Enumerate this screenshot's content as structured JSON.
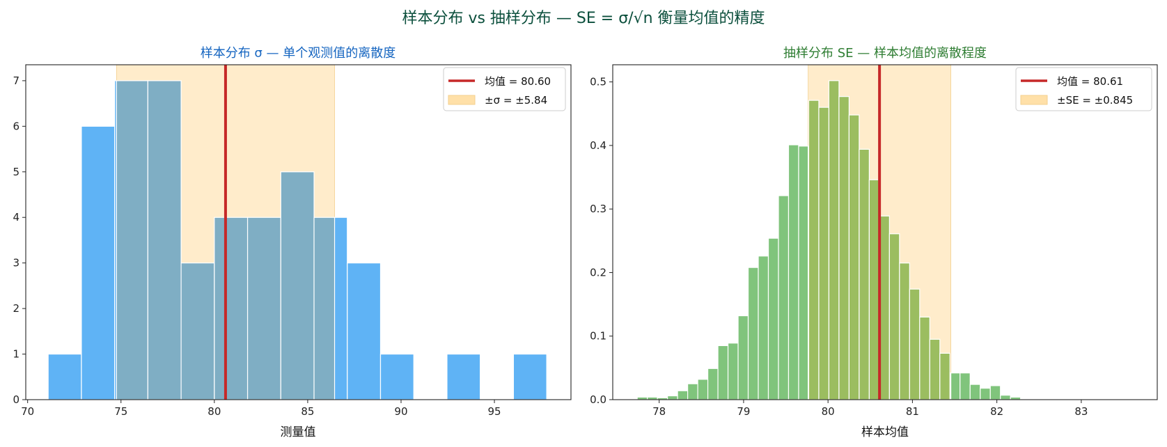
{
  "suptitle": "样本分布 vs 抽样分布 — SE = σ/√n 衡量均值的精度",
  "colors": {
    "mean_line": "#c62828",
    "band": "#ffe0a8",
    "left_bar": "#5fb3f5",
    "left_bar_in_band": "#7faec4",
    "right_bar": "#80c47c",
    "right_bar_in_band": "#9bbd60",
    "left_title": "#1565c0",
    "right_title": "#2e7d32"
  },
  "chart_data": [
    {
      "type": "bar",
      "title": "样本分布 σ — 单个观测值的离散度",
      "xlabel": "测量值",
      "ylabel": "",
      "xlim": [
        69.9,
        99.1
      ],
      "ylim": [
        0,
        7.35
      ],
      "xticks": [
        70,
        75,
        80,
        85,
        90,
        95
      ],
      "yticks": [
        0,
        1,
        2,
        3,
        4,
        5,
        6,
        7
      ],
      "bin_edges": [
        71.1,
        72.88,
        74.66,
        76.44,
        78.22,
        80.0,
        81.78,
        83.56,
        85.34,
        87.12,
        88.9,
        90.68,
        92.46,
        94.24,
        96.02,
        97.8
      ],
      "values": [
        1,
        6,
        7,
        7,
        3,
        4,
        4,
        5,
        4,
        3,
        1,
        0,
        1,
        0,
        1
      ],
      "mean": 80.6,
      "band": [
        74.76,
        86.44
      ],
      "legend": {
        "position": "upper right",
        "entries": [
          "均值 = 80.60",
          "±σ = ±5.84"
        ]
      }
    },
    {
      "type": "bar",
      "title": "抽样分布 SE — 样本均值的离散程度",
      "xlabel": "样本均值",
      "ylabel": "",
      "xlim": [
        77.45,
        83.9
      ],
      "ylim": [
        0,
        0.527
      ],
      "xticks": [
        78,
        79,
        80,
        81,
        82,
        83
      ],
      "yticks": [
        0.0,
        0.1,
        0.2,
        0.3,
        0.4,
        0.5
      ],
      "ytick_labels": [
        "0.0",
        "0.1",
        "0.2",
        "0.3",
        "0.4",
        "0.5"
      ],
      "bin_start": 77.74,
      "bin_width": 0.1195,
      "values": [
        0.004,
        0.004,
        0.003,
        0.006,
        0.014,
        0.025,
        0.032,
        0.049,
        0.085,
        0.089,
        0.132,
        0.208,
        0.226,
        0.254,
        0.321,
        0.401,
        0.399,
        0.471,
        0.46,
        0.502,
        0.477,
        0.448,
        0.394,
        0.346,
        0.289,
        0.261,
        0.215,
        0.174,
        0.13,
        0.095,
        0.073,
        0.042,
        0.042,
        0.024,
        0.018,
        0.022,
        0.007,
        0.004,
        0.001
      ],
      "mean": 80.61,
      "band": [
        79.765,
        81.455
      ],
      "legend": {
        "position": "upper right",
        "entries": [
          "均值 = 80.61",
          "±SE = ±0.845"
        ]
      }
    }
  ]
}
